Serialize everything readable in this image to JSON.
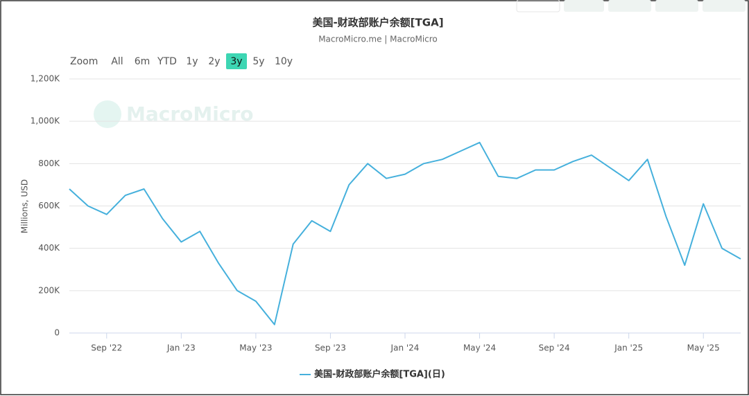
{
  "chart_data": {
    "type": "line",
    "title": "美国-财政部账户余额[TGA]",
    "subtitle": "MacroMicro.me | MacroMicro",
    "watermark": "MacroMicro",
    "range_selector": {
      "label": "Zoom",
      "buttons": [
        "All",
        "6m",
        "YTD",
        "1y",
        "2y",
        "3y",
        "5y",
        "10y"
      ],
      "selected": 5
    },
    "y_label": "Millions, USD",
    "x": [
      "2022-07",
      "2022-08",
      "2022-09",
      "2022-10",
      "2022-11",
      "2022-12",
      "2023-01",
      "2023-02",
      "2023-03",
      "2023-04",
      "2023-05",
      "2023-06",
      "2023-07",
      "2023-08",
      "2023-09",
      "2023-10",
      "2023-11",
      "2023-12",
      "2024-01",
      "2024-02",
      "2024-03",
      "2024-04",
      "2024-05",
      "2024-06",
      "2024-07",
      "2024-08",
      "2024-09",
      "2024-10",
      "2024-11",
      "2024-12",
      "2025-01",
      "2025-02",
      "2025-03",
      "2025-04",
      "2025-05",
      "2025-06",
      "2025-07"
    ],
    "series": [
      {
        "name": "美国-财政部账户余额[TGA](日)",
        "color": "#45b0dc",
        "values": [
          680000,
          600000,
          560000,
          650000,
          680000,
          540000,
          430000,
          480000,
          330000,
          200000,
          150000,
          40000,
          420000,
          530000,
          480000,
          700000,
          800000,
          730000,
          750000,
          800000,
          820000,
          860000,
          900000,
          740000,
          730000,
          770000,
          770000,
          810000,
          840000,
          780000,
          720000,
          820000,
          550000,
          320000,
          610000,
          400000,
          350000
        ]
      }
    ],
    "xlim": [
      "2022-07",
      "2025-07"
    ],
    "xticks": [
      {
        "value": "2022-09",
        "label": "Sep '22"
      },
      {
        "value": "2023-01",
        "label": "Jan '23"
      },
      {
        "value": "2023-05",
        "label": "May '23"
      },
      {
        "value": "2023-09",
        "label": "Sep '23"
      },
      {
        "value": "2024-01",
        "label": "Jan '24"
      },
      {
        "value": "2024-05",
        "label": "May '24"
      },
      {
        "value": "2024-09",
        "label": "Sep '24"
      },
      {
        "value": "2025-01",
        "label": "Jan '25"
      },
      {
        "value": "2025-05",
        "label": "May '25"
      }
    ],
    "ylim": [
      0,
      1200000
    ],
    "yticks": [
      0,
      {
        "value": 200000,
        "label": "200K"
      },
      {
        "value": 400000,
        "label": "400K"
      },
      {
        "value": 600000,
        "label": "600K"
      },
      {
        "value": 800000,
        "label": "800K"
      },
      {
        "value": 1000000,
        "label": "1,000K"
      },
      {
        "value": 1200000,
        "label": "1,200K"
      }
    ],
    "grid": true
  }
}
